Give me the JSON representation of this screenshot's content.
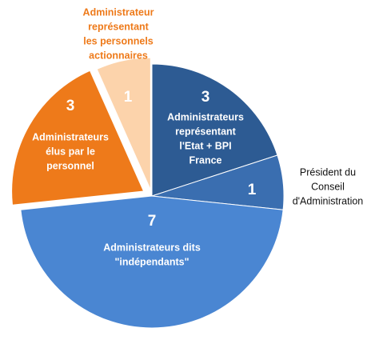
{
  "chart_data": {
    "type": "pie",
    "categories": [
      [
        "Administrateurs",
        "représentant",
        "l'Etat + BPI",
        "France"
      ],
      [
        "Président du",
        "Conseil",
        "d'Administration"
      ],
      [
        "Administrateurs dits",
        "\"indépendants\""
      ],
      [
        "Administrateurs",
        "élus par le",
        "personnel"
      ],
      [
        "Administrateur",
        "représentant",
        "les personnels",
        "actionnaires"
      ]
    ],
    "values": [
      3,
      1,
      7,
      3,
      1
    ],
    "colors": [
      "#2d5b93",
      "#3a6eb0",
      "#4a86d2",
      "#ee7a1a",
      "#fcd3ab"
    ]
  }
}
